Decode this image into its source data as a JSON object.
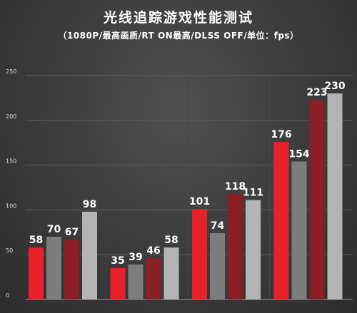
{
  "chart_data": {
    "type": "bar",
    "title": "光线追踪游戏性能测试",
    "subtitle": "（1080P/最高画质/RT ON最高/DLSS OFF/单位：fps）",
    "ylim": [
      0,
      250
    ],
    "yticks": [
      0,
      50,
      100,
      150,
      200,
      250
    ],
    "grid": true,
    "series": [
      {
        "values": [
          58,
          35,
          101,
          176
        ],
        "color": "#e8202a"
      },
      {
        "values": [
          70,
          39,
          74,
          154
        ],
        "color": "#7d7d7d"
      },
      {
        "values": [
          67,
          46,
          118,
          223
        ],
        "color": "#8a1f26"
      },
      {
        "values": [
          98,
          58,
          111,
          230
        ],
        "color": "#b4b4b4"
      }
    ]
  }
}
